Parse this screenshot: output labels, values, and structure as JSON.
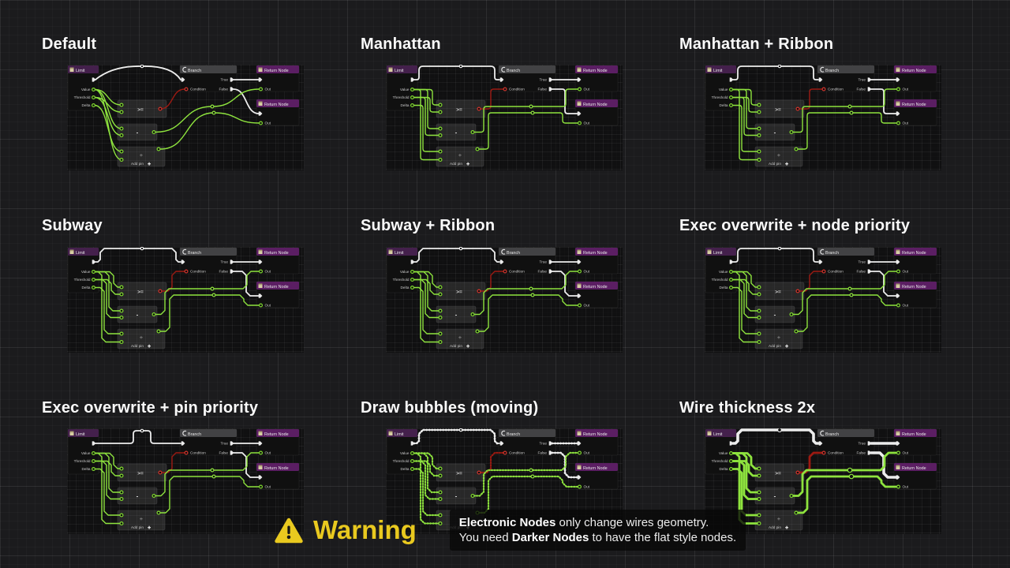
{
  "panels": [
    {
      "title": "Default",
      "style": "spline"
    },
    {
      "title": "Manhattan",
      "style": "manhattan"
    },
    {
      "title": "Manhattan + Ribbon",
      "style": "manhattan"
    },
    {
      "title": "Subway",
      "style": "subway"
    },
    {
      "title": "Subway + Ribbon",
      "style": "subway"
    },
    {
      "title": "Exec overwrite + node priority",
      "style": "subway",
      "exec": "manhattan"
    },
    {
      "title": "Exec overwrite + pin priority",
      "style": "subway",
      "exec": "bump"
    },
    {
      "title": "Draw bubbles (moving)",
      "style": "subway",
      "bubbles": true
    },
    {
      "title": "Wire thickness 2x",
      "style": "subway",
      "thickness": 2
    }
  ],
  "graph": {
    "nodes": {
      "limit": {
        "title": "Limit",
        "outputs": [
          "Value",
          "Threshold",
          "Delta"
        ]
      },
      "branch": {
        "title": "Branch",
        "condition_label": "Condition",
        "true_label": "True",
        "false_label": "False"
      },
      "return1": {
        "title": "Return Node",
        "out_label": "Out"
      },
      "return2": {
        "title": "Return Node",
        "out_label": "Out"
      },
      "compare": {
        "label": ">="
      },
      "subtract": {
        "label": "-"
      },
      "add_pin": {
        "label": "Add pin",
        "plus_icon": "✚",
        "center_plus": "+"
      }
    }
  },
  "warning": {
    "title": "Warning",
    "line1_bold": "Electronic Nodes",
    "line1_rest": " only change wires geometry.",
    "line2_pre": "You need ",
    "line2_bold": "Darker Nodes",
    "line2_rest": " to have the flat style nodes."
  },
  "colors": {
    "background": "#1b1b1d",
    "wire_exec": "#ededed",
    "wire_data": "#8ee33e",
    "wire_bool": "#9d1a12",
    "pin_data": "#7fd82f",
    "pin_bool": "#d0342c",
    "pin_exec": "#ececec",
    "header_function": "#5b1e63",
    "header_macro": "#44204c",
    "header_branch": "#424244",
    "node_body": "#101010",
    "math_body": "rgba(150,150,150,0.18)",
    "title_text": "#fafafa",
    "warning_yellow": "#e9c91f",
    "label_text": "#c9c9c9"
  }
}
